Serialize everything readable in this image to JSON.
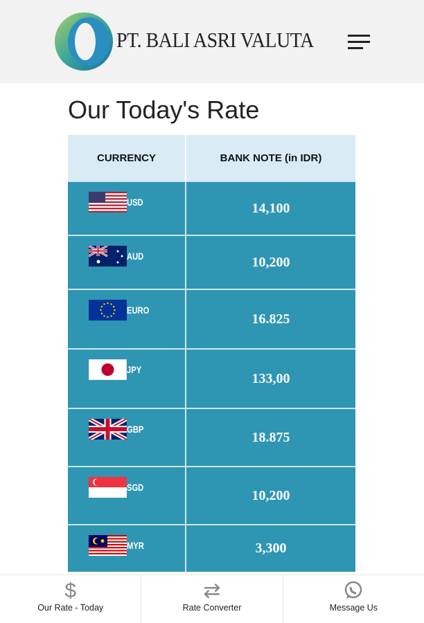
{
  "header": {
    "brand": "PT. BALI ASRI VALUTA"
  },
  "page_title": "Our Today's Rate",
  "table": {
    "headers": [
      "CURRENCY",
      "BANK NOTE (in IDR)"
    ],
    "rows": [
      {
        "code": "USD",
        "flag": "us-flag",
        "value": "14,100"
      },
      {
        "code": "AUD",
        "flag": "au-flag",
        "value": "10,200"
      },
      {
        "code": "EURO",
        "flag": "eu-flag",
        "value": "16.825"
      },
      {
        "code": "JPY",
        "flag": "jp-flag",
        "value": "133,00"
      },
      {
        "code": "GBP",
        "flag": "gb-flag",
        "value": "18.875"
      },
      {
        "code": "SGD",
        "flag": "sg-flag",
        "value": "10,200"
      },
      {
        "code": "MYR",
        "flag": "my-flag",
        "value": "3,300"
      }
    ]
  },
  "bottom_nav": [
    {
      "label": "Our Rate - Today",
      "icon": "dollar-icon"
    },
    {
      "label": "Rate Converter",
      "icon": "swap-arrows-icon"
    },
    {
      "label": "Message Us",
      "icon": "whatsapp-icon"
    }
  ],
  "colors": {
    "row_bg": "#2e95b3",
    "header_bg": "#d9ecf5"
  }
}
